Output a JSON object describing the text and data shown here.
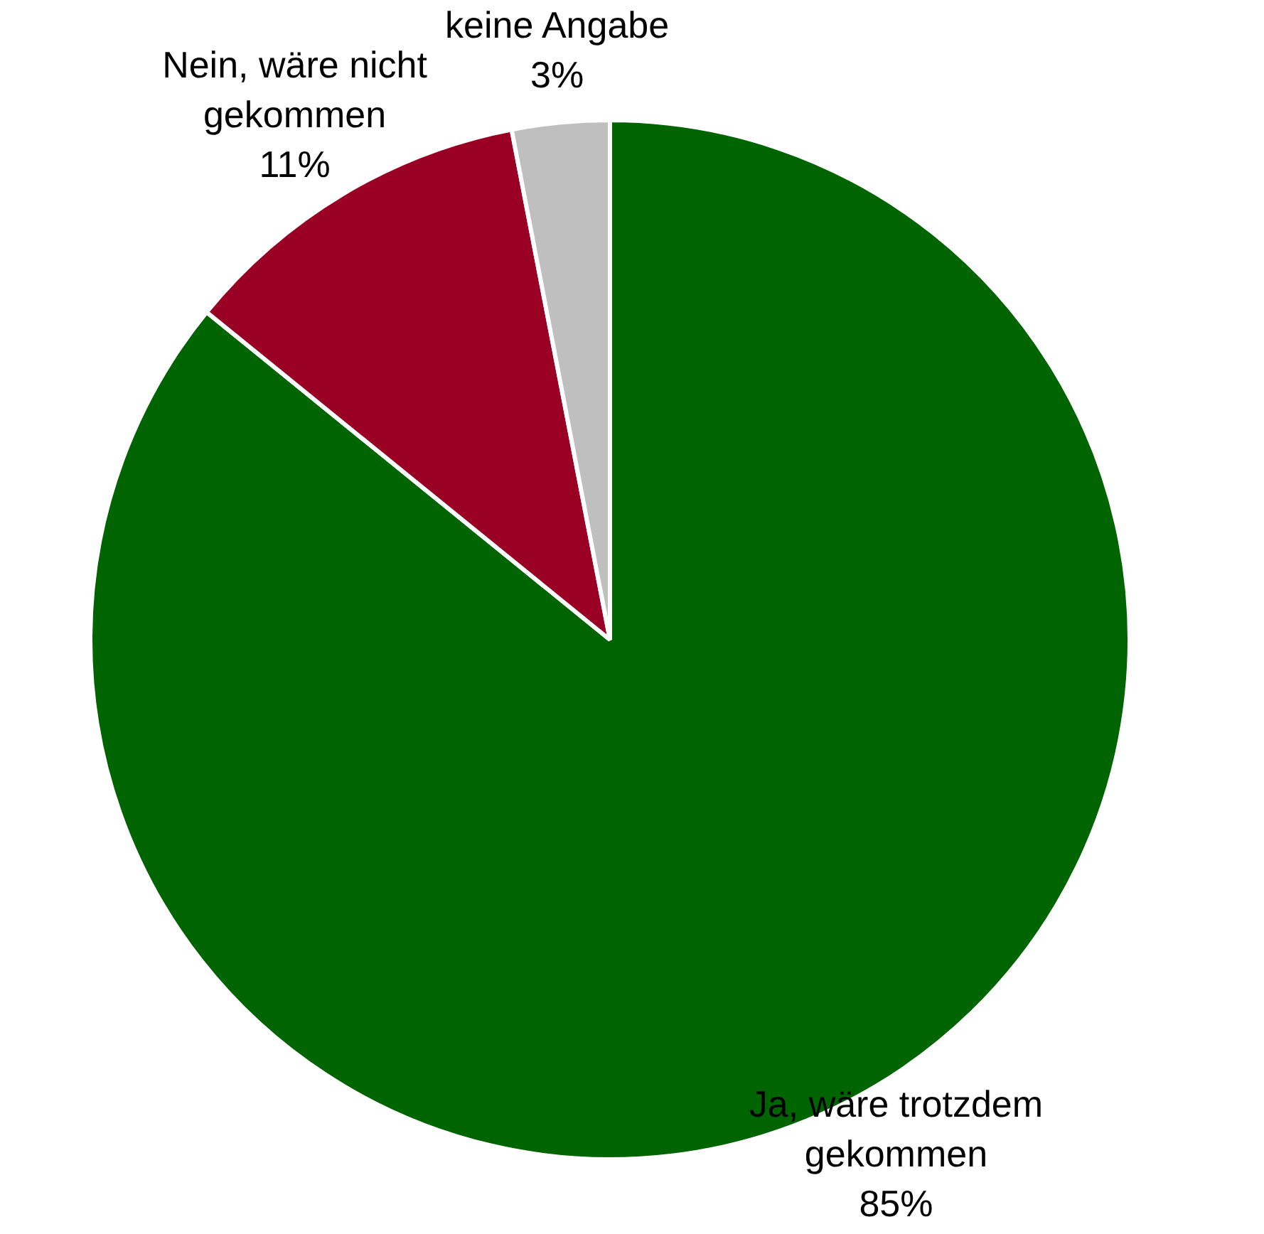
{
  "chart_data": {
    "type": "pie",
    "categories": [
      "Ja, wäre trotzdem gekommen",
      "Nein, wäre nicht gekommen",
      "keine Angabe"
    ],
    "values": [
      85,
      11,
      3
    ],
    "value_labels": [
      "85%",
      "11%",
      "3%"
    ],
    "colors": [
      "#006400",
      "#990024",
      "#bfbfbf"
    ],
    "legend": false
  }
}
